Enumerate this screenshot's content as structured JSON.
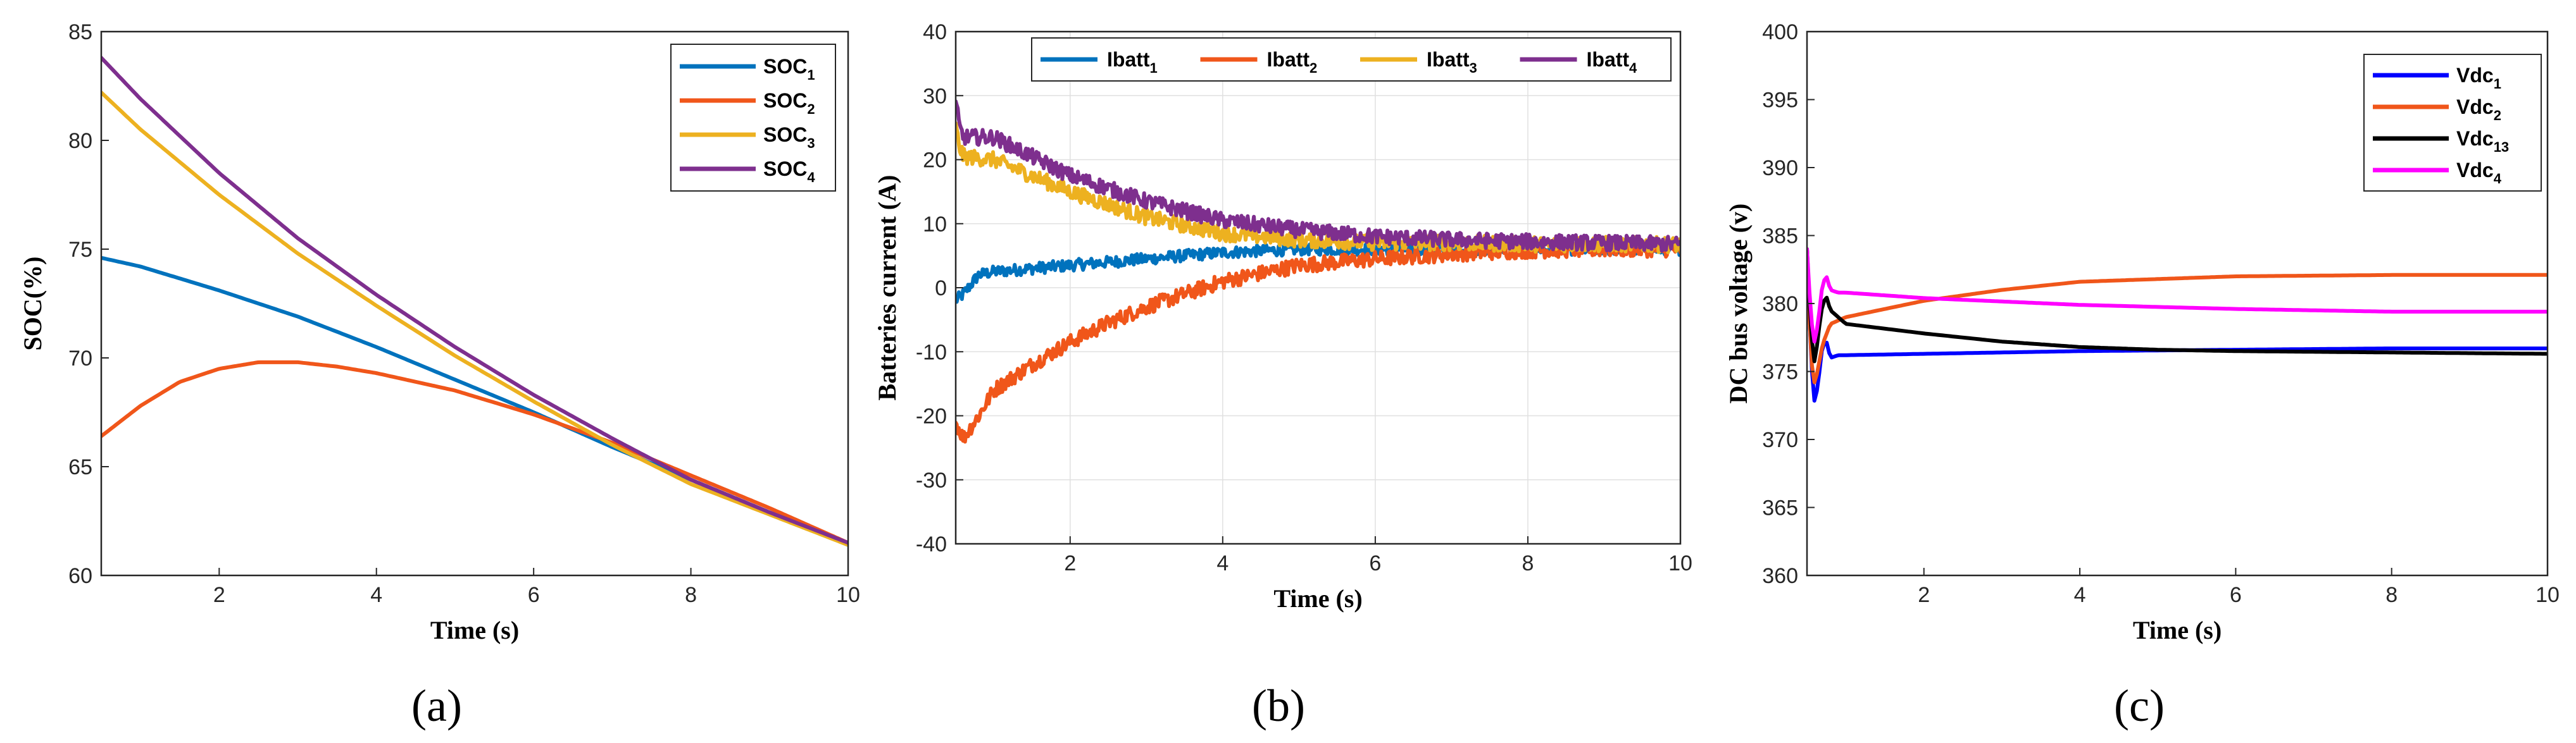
{
  "chart_data": [
    {
      "id": "a",
      "type": "line",
      "panel_label": "(a)",
      "xlabel": "Time (s)",
      "ylabel": "SOC(%)",
      "xlim": [
        0.5,
        10
      ],
      "ylim": [
        60,
        85
      ],
      "xticks": [
        2,
        4,
        6,
        8,
        10
      ],
      "yticks": [
        60,
        65,
        70,
        75,
        80,
        85
      ],
      "grid": false,
      "noisy": false,
      "legend": {
        "position": "top-right"
      },
      "series": [
        {
          "name": "SOC",
          "sub": "1",
          "color": "#0072BD",
          "x": [
            0.5,
            1,
            2,
            3,
            4,
            5,
            6,
            7,
            8,
            9,
            10
          ],
          "y": [
            74.6,
            74.2,
            73.1,
            71.9,
            70.5,
            69.0,
            67.5,
            65.9,
            64.4,
            62.9,
            61.4
          ]
        },
        {
          "name": "SOC",
          "sub": "2",
          "color": "#F0561A",
          "x": [
            0.5,
            1,
            1.5,
            2,
            2.5,
            3,
            3.5,
            4,
            5,
            6,
            7,
            8,
            9,
            10
          ],
          "y": [
            66.4,
            67.8,
            68.9,
            69.5,
            69.8,
            69.8,
            69.6,
            69.3,
            68.5,
            67.4,
            66.1,
            64.6,
            63.1,
            61.5
          ]
        },
        {
          "name": "SOC",
          "sub": "3",
          "color": "#EDB120",
          "x": [
            0.5,
            1,
            2,
            3,
            4,
            5,
            6,
            7,
            8,
            9,
            10
          ],
          "y": [
            82.2,
            80.5,
            77.5,
            74.8,
            72.4,
            70.1,
            68.0,
            66.0,
            64.2,
            62.8,
            61.4
          ]
        },
        {
          "name": "SOC",
          "sub": "4",
          "color": "#7E2F8E",
          "x": [
            0.5,
            1,
            2,
            3,
            4,
            5,
            6,
            7,
            8,
            9,
            10
          ],
          "y": [
            83.8,
            81.9,
            78.5,
            75.5,
            72.9,
            70.5,
            68.3,
            66.3,
            64.4,
            62.9,
            61.5
          ]
        }
      ]
    },
    {
      "id": "b",
      "type": "line",
      "panel_label": "(b)",
      "xlabel": "Time (s)",
      "ylabel": "Batteries current (A)",
      "xlim": [
        0.5,
        10
      ],
      "ylim": [
        -40,
        40
      ],
      "xticks": [
        2,
        4,
        6,
        8,
        10
      ],
      "yticks": [
        -40,
        -30,
        -20,
        -10,
        0,
        10,
        20,
        30,
        40
      ],
      "grid": true,
      "noisy": true,
      "legend": {
        "position": "top",
        "horizontal": true
      },
      "series": [
        {
          "name": "Ibatt",
          "sub": "1",
          "color": "#0072BD",
          "x": [
            0.5,
            0.6,
            0.8,
            1,
            2,
            3,
            4,
            5,
            6,
            7,
            8,
            9,
            10
          ],
          "y": [
            -2,
            -1,
            2,
            2.5,
            3.5,
            4.5,
            5.5,
            6,
            6,
            6,
            6,
            6,
            6
          ]
        },
        {
          "name": "Ibatt",
          "sub": "2",
          "color": "#F0561A",
          "x": [
            0.5,
            0.6,
            0.8,
            1,
            1.5,
            2,
            2.5,
            3,
            4,
            5,
            6,
            7,
            8,
            9,
            10
          ],
          "y": [
            -21,
            -23.5,
            -20,
            -16,
            -12,
            -8.5,
            -5.5,
            -3,
            1,
            3.5,
            4.5,
            5.3,
            5.8,
            6,
            6
          ]
        },
        {
          "name": "Ibatt",
          "sub": "3",
          "color": "#EDB120",
          "x": [
            0.5,
            0.55,
            0.6,
            1,
            1.5,
            2,
            3,
            4,
            5,
            6,
            7,
            8,
            9,
            10
          ],
          "y": [
            25,
            22,
            20.5,
            20,
            17.5,
            15,
            11,
            8.5,
            7.5,
            7,
            7,
            6.8,
            6.8,
            6.7
          ]
        },
        {
          "name": "Ibatt",
          "sub": "4",
          "color": "#7E2F8E",
          "x": [
            0.5,
            0.55,
            0.6,
            1,
            1.5,
            2,
            3,
            4,
            5,
            6,
            7,
            8,
            9,
            10
          ],
          "y": [
            29,
            25,
            23.5,
            23.5,
            20.5,
            17.5,
            13.5,
            10.5,
            9,
            8,
            7.5,
            7.2,
            7,
            6.8
          ]
        }
      ]
    },
    {
      "id": "c",
      "type": "line",
      "panel_label": "(c)",
      "xlabel": "Time (s)",
      "ylabel": "DC bus voltage (v)",
      "xlim": [
        0.5,
        10
      ],
      "ylim": [
        360,
        400
      ],
      "xticks": [
        2,
        4,
        6,
        8,
        10
      ],
      "yticks": [
        360,
        365,
        370,
        375,
        380,
        385,
        390,
        395,
        400
      ],
      "grid": false,
      "noisy": false,
      "legend": {
        "position": "top-right"
      },
      "series": [
        {
          "name": "Vdc",
          "sub": "1",
          "color": "#0000FF",
          "x": [
            0.5,
            0.55,
            0.6,
            0.65,
            0.7,
            0.75,
            0.8,
            0.9,
            1,
            2,
            4,
            6,
            8,
            10
          ],
          "y": [
            384,
            376,
            372.5,
            374.5,
            377,
            377.2,
            376,
            376.2,
            376.2,
            376.3,
            376.5,
            376.6,
            376.7,
            376.7
          ]
        },
        {
          "name": "Vdc",
          "sub": "2",
          "color": "#F0561A",
          "x": [
            0.5,
            0.55,
            0.6,
            0.7,
            0.8,
            1,
            2,
            3,
            4,
            5,
            6,
            8,
            10
          ],
          "y": [
            384,
            376,
            374,
            377,
            378.5,
            379,
            380.2,
            381,
            381.6,
            381.8,
            382,
            382.1,
            382.1
          ]
        },
        {
          "name": "Vdc",
          "sub": "13",
          "color": "#000000",
          "x": [
            0.5,
            0.55,
            0.6,
            0.65,
            0.7,
            0.75,
            0.8,
            1,
            2,
            3,
            4,
            5,
            6,
            8,
            10
          ],
          "y": [
            384,
            378,
            375.5,
            378,
            380,
            380.5,
            379.5,
            378.5,
            377.8,
            377.2,
            376.8,
            376.6,
            376.5,
            376.4,
            376.3
          ]
        },
        {
          "name": "Vdc",
          "sub": "4",
          "color": "#FF00FF",
          "x": [
            0.5,
            0.55,
            0.6,
            0.65,
            0.7,
            0.75,
            0.8,
            0.9,
            1,
            2,
            4,
            6,
            8,
            10
          ],
          "y": [
            384,
            379,
            377,
            379,
            381.5,
            382,
            381,
            380.8,
            380.8,
            380.4,
            379.9,
            379.6,
            379.4,
            379.4
          ]
        }
      ]
    }
  ]
}
